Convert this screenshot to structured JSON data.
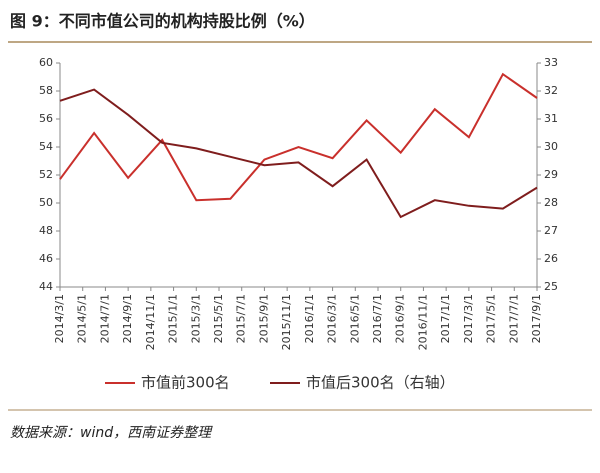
{
  "chart_data": {
    "type": "line",
    "title": "图 9：不同市值公司的机构持股比例（%）",
    "source": "数据来源：wind，西南证券整理",
    "xlim": [
      "2014/3/1",
      "2017/9/1"
    ],
    "xticks": [
      "2014/3/1",
      "2014/5/1",
      "2014/7/1",
      "2014/9/1",
      "2014/11/1",
      "2015/1/1",
      "2015/3/1",
      "2015/5/1",
      "2015/7/1",
      "2015/9/1",
      "2015/11/1",
      "2016/1/1",
      "2016/3/1",
      "2016/5/1",
      "2016/7/1",
      "2016/9/1",
      "2016/11/1",
      "2017/1/1",
      "2017/3/1",
      "2017/5/1",
      "2017/7/1",
      "2017/9/1"
    ],
    "x": [
      "2014/3/1",
      "2014/6/1",
      "2014/9/1",
      "2014/12/1",
      "2015/3/1",
      "2015/6/1",
      "2015/9/1",
      "2015/12/1",
      "2016/3/1",
      "2016/6/1",
      "2016/9/1",
      "2016/12/1",
      "2017/3/1",
      "2017/6/1",
      "2017/9/1"
    ],
    "ylim": [
      44,
      60
    ],
    "yticks": [
      44,
      46,
      48,
      50,
      52,
      54,
      56,
      58,
      60
    ],
    "y2lim": [
      25,
      33
    ],
    "y2ticks": [
      25,
      26,
      27,
      28,
      29,
      30,
      31,
      32,
      33
    ],
    "series": [
      {
        "name": "市值前300名",
        "color": "#c9302c",
        "axis": "y",
        "values": [
          51.7,
          55.0,
          51.8,
          54.5,
          50.2,
          50.3,
          53.1,
          54.0,
          53.2,
          55.9,
          53.6,
          56.7,
          54.7,
          59.2,
          57.5
        ]
      },
      {
        "name": "市值后300名（右轴）",
        "color": "#7f1d1d",
        "axis": "y2",
        "values": [
          31.65,
          32.05,
          31.15,
          30.15,
          29.95,
          29.65,
          29.35,
          29.45,
          28.6,
          29.55,
          27.5,
          28.1,
          27.9,
          27.8,
          28.55
        ]
      }
    ]
  }
}
